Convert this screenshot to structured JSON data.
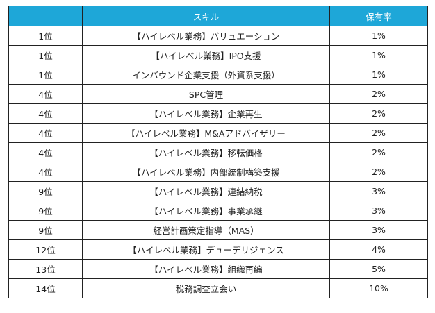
{
  "table": {
    "headers": [
      "",
      "スキル",
      "保有率"
    ],
    "rows": [
      {
        "rank": "1位",
        "skill": "【ハイレベル業務】バリュエーション",
        "rate": "1%"
      },
      {
        "rank": "1位",
        "skill": "【ハイレベル業務】IPO支援",
        "rate": "1%"
      },
      {
        "rank": "1位",
        "skill": "インバウンド企業支援（外資系支援）",
        "rate": "1%"
      },
      {
        "rank": "4位",
        "skill": "SPC管理",
        "rate": "2%"
      },
      {
        "rank": "4位",
        "skill": "【ハイレベル業務】企業再生",
        "rate": "2%"
      },
      {
        "rank": "4位",
        "skill": "【ハイレベル業務】M&Aアドバイザリー",
        "rate": "2%"
      },
      {
        "rank": "4位",
        "skill": "【ハイレベル業務】移転価格",
        "rate": "2%"
      },
      {
        "rank": "4位",
        "skill": "【ハイレベル業務】内部統制構築支援",
        "rate": "2%"
      },
      {
        "rank": "9位",
        "skill": "【ハイレベル業務】連結納税",
        "rate": "3%"
      },
      {
        "rank": "9位",
        "skill": "【ハイレベル業務】事業承継",
        "rate": "3%"
      },
      {
        "rank": "9位",
        "skill": "経営計画策定指導（MAS）",
        "rate": "3%"
      },
      {
        "rank": "12位",
        "skill": "【ハイレベル業務】デューデリジェンス",
        "rate": "4%"
      },
      {
        "rank": "13位",
        "skill": "【ハイレベル業務】組織再編",
        "rate": "5%"
      },
      {
        "rank": "14位",
        "skill": "税務調査立会い",
        "rate": "10%"
      }
    ]
  },
  "colors": {
    "header_bg": "#1ea7d8",
    "header_text": "#ffffff",
    "border": "#222222"
  }
}
